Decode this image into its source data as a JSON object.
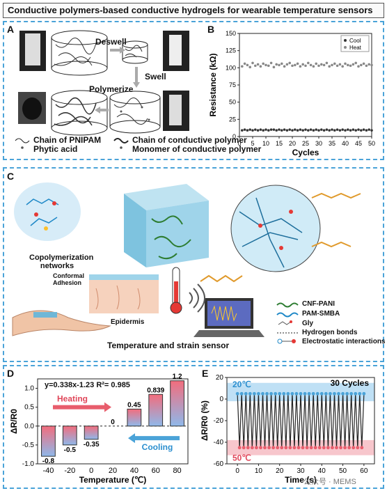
{
  "title": "Conductive polymers-based conductive hydrogels for wearable temperature sensors",
  "panelA": {
    "label": "A",
    "deswell": "Deswell",
    "swell": "Swell",
    "polymerize": "Polymerize",
    "legend": {
      "pnipam": "Chain of PNIPAM",
      "phytic": "Phytic acid",
      "conductive_chain": "Chain of conductive polymer",
      "monomer": "Monomer of conductive polymer"
    }
  },
  "panelB": {
    "label": "B",
    "chart_data": {
      "type": "scatter",
      "xlabel": "Cycles",
      "ylabel": "Resistance (kΩ)",
      "xlim": [
        0,
        50
      ],
      "ylim": [
        0,
        150
      ],
      "xticks": [
        "0",
        "5",
        "10",
        "15",
        "20",
        "25",
        "30",
        "35",
        "40",
        "45",
        "50"
      ],
      "yticks": [
        "0",
        "25",
        "50",
        "75",
        "100",
        "125",
        "150"
      ],
      "series": [
        {
          "name": "Cool",
          "color": "#333333",
          "values": [
            9,
            10,
            9,
            10,
            9,
            10,
            9,
            10,
            9,
            10,
            9,
            10,
            10,
            9,
            10,
            9,
            10,
            9,
            10,
            9,
            10,
            9,
            10,
            9,
            10,
            9,
            10,
            9,
            10,
            9,
            10,
            9,
            10,
            9,
            10,
            9,
            10,
            9,
            10,
            9,
            10,
            9,
            10,
            9,
            10,
            9,
            10,
            9,
            10,
            9
          ]
        },
        {
          "name": "Heat",
          "color": "#888888",
          "values": [
            102,
            106,
            104,
            101,
            107,
            103,
            105,
            102,
            106,
            104,
            103,
            107,
            101,
            105,
            104,
            106,
            102,
            105,
            107,
            103,
            104,
            106,
            102,
            105,
            103,
            107,
            104,
            102,
            106,
            103,
            105,
            104,
            107,
            102,
            104,
            106,
            103,
            105,
            102,
            106,
            104,
            103,
            105,
            107,
            102,
            104,
            106,
            103,
            105,
            104
          ]
        }
      ],
      "legend_position": "top-right"
    }
  },
  "panelC": {
    "label": "C",
    "copolymer": "Copolymerization networks",
    "conformal": "Conformal Adhesion",
    "epidermis": "Epidermis",
    "sensor": "Temperature and strain sensor",
    "legend": [
      "CNF-PANI",
      "PAM-SMBA",
      "Gly",
      "Hydrogen bonds",
      "Electrostatic interactions"
    ]
  },
  "panelD": {
    "label": "D",
    "equation": "y=0.338x-1.23  R²= 0.985",
    "heating": "Heating",
    "cooling": "Cooling",
    "chart_data": {
      "type": "bar",
      "categories": [
        "-40",
        "-20",
        "0",
        "20",
        "40",
        "60",
        "80"
      ],
      "values": [
        -0.8,
        -0.5,
        -0.35,
        0,
        0.45,
        0.839,
        1.2
      ],
      "value_labels": [
        "-0.8",
        "-0.5",
        "-0.35",
        "0",
        "0.45",
        "0.839",
        "1.2"
      ],
      "xlabel": "Temperature (℃)",
      "ylabel": "ΔR/R0",
      "ylim": [
        -1.0,
        1.25
      ],
      "yticks": [
        "-1.0",
        "-0.5",
        "0.0",
        "0.5",
        "1.0"
      ]
    }
  },
  "panelE": {
    "label": "E",
    "cycles": "30 Cycles",
    "t_high": "20℃",
    "t_low": "50℃",
    "chart_data": {
      "type": "line",
      "xlabel": "Time (s)",
      "ylabel": "ΔR/R0 (%)",
      "xlim": [
        -5,
        65
      ],
      "ylim": [
        -60,
        20
      ],
      "xticks": [
        "0",
        "10",
        "20",
        "30",
        "40",
        "50",
        "60"
      ],
      "yticks": [
        "-60",
        "-40",
        "-20",
        "0",
        "20"
      ],
      "high": 5,
      "low": -45,
      "cycle_count": 30
    }
  },
  "watermark": "公众号 · MEMS"
}
